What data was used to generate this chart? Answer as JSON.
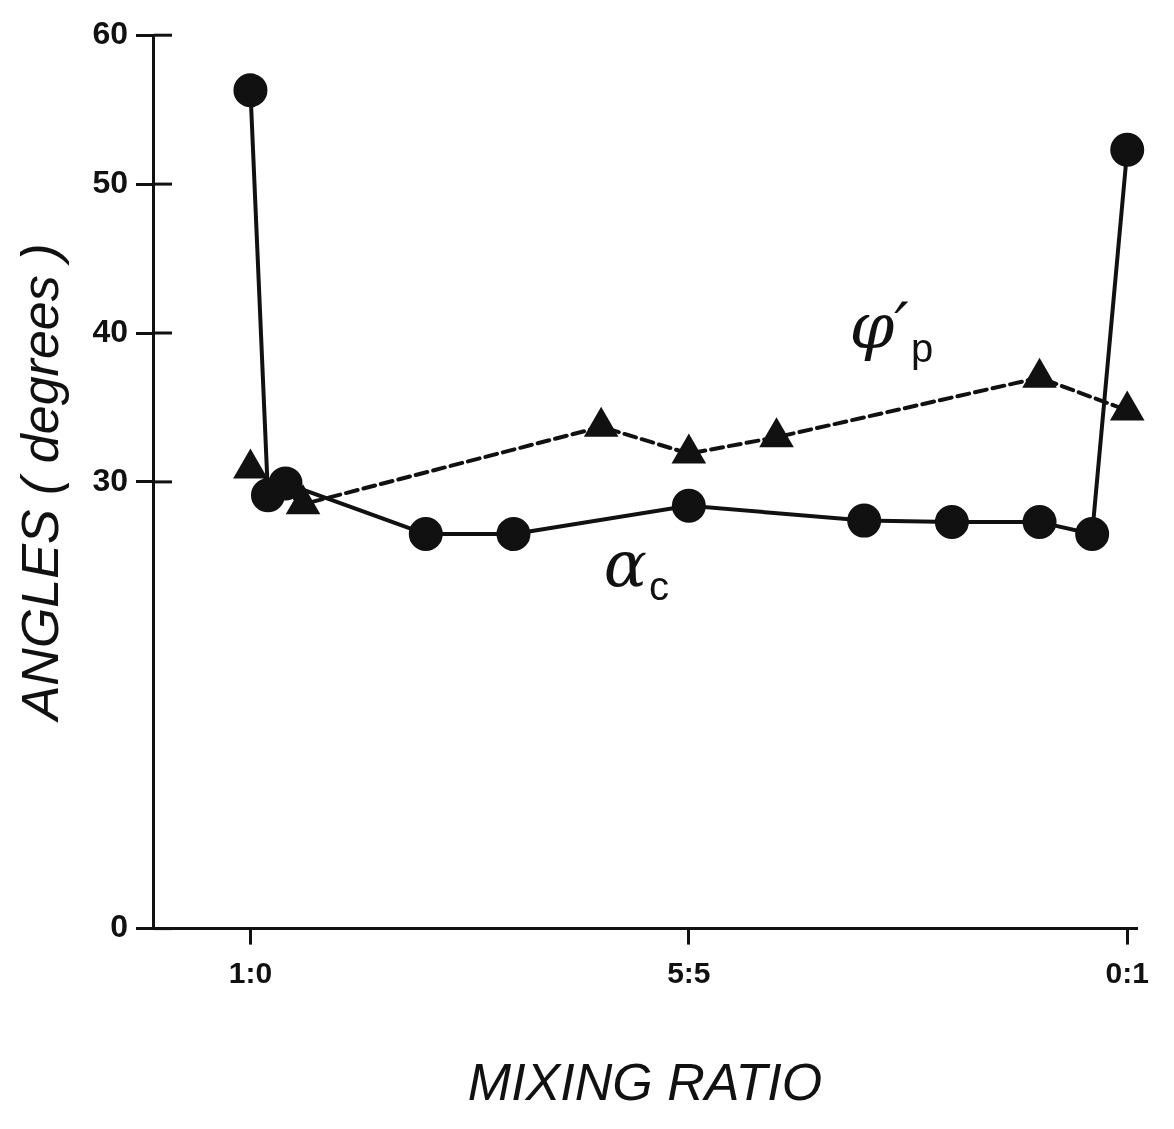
{
  "chart_data": {
    "type": "line",
    "xlabel": "MIXING RATIO",
    "ylabel": "ANGLES ( degrees )",
    "categories": [
      null,
      null,
      null,
      null,
      null,
      "1:0",
      null,
      null,
      null,
      null,
      null,
      null,
      null,
      null,
      null,
      null,
      null,
      null,
      null,
      null,
      null,
      null,
      null,
      null,
      null,
      null,
      null,
      null,
      null,
      null,
      "5:5",
      null,
      null,
      null,
      null,
      null,
      null,
      null,
      null,
      null,
      null,
      null,
      null,
      null,
      null,
      null,
      null,
      null,
      null,
      null,
      null,
      null,
      null,
      null,
      null,
      "0:1"
    ],
    "ylim": [
      0,
      60
    ],
    "yticks": [
      0,
      30,
      40,
      50,
      60
    ],
    "grid": false,
    "legend": false,
    "series": [
      {
        "name": "α$_{c}$",
        "color": "#111111",
        "marker": "circle",
        "line_style": "solid",
        "values": [
          null,
          null,
          null,
          null,
          null,
          56.3,
          29.1,
          29.9,
          null,
          null,
          null,
          null,
          null,
          null,
          null,
          26.5,
          null,
          null,
          null,
          null,
          26.5,
          null,
          null,
          null,
          null,
          null,
          null,
          null,
          null,
          null,
          28.4,
          null,
          null,
          null,
          null,
          null,
          null,
          null,
          null,
          null,
          27.4,
          null,
          null,
          null,
          null,
          27.3,
          null,
          null,
          null,
          null,
          27.3,
          null,
          null,
          26.5,
          null,
          52.3
        ]
      },
      {
        "name": "φ′$_{p}$",
        "color": "#111111",
        "marker": "triangle",
        "line_style": "dashed",
        "values": [
          null,
          null,
          null,
          null,
          null,
          30.9,
          null,
          null,
          28.5,
          null,
          null,
          null,
          null,
          null,
          null,
          null,
          null,
          null,
          null,
          null,
          null,
          null,
          null,
          null,
          null,
          33.7,
          null,
          null,
          null,
          null,
          31.9,
          null,
          null,
          null,
          null,
          33.0,
          null,
          null,
          null,
          null,
          null,
          null,
          null,
          null,
          null,
          null,
          null,
          null,
          null,
          null,
          37.0,
          null,
          null,
          null,
          null,
          34.8
        ]
      }
    ]
  }
}
